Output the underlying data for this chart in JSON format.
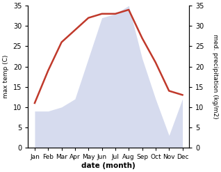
{
  "months": [
    "Jan",
    "Feb",
    "Mar",
    "Apr",
    "May",
    "Jun",
    "Jul",
    "Aug",
    "Sep",
    "Oct",
    "Nov",
    "Dec"
  ],
  "temperature": [
    11,
    19,
    26,
    29,
    32,
    33,
    33,
    34,
    27,
    21,
    14,
    13
  ],
  "precipitation": [
    9,
    9,
    10,
    12,
    22,
    32,
    33,
    35,
    22,
    12,
    3,
    12
  ],
  "temp_color": "#c0392b",
  "precip_color": "#c5cce8",
  "title": "",
  "xlabel": "date (month)",
  "ylabel_left": "max temp (C)",
  "ylabel_right": "med. precipitation (kg/m2)",
  "ylim_left": [
    0,
    35
  ],
  "ylim_right": [
    0,
    35
  ],
  "yticks": [
    0,
    5,
    10,
    15,
    20,
    25,
    30,
    35
  ],
  "background_color": "#ffffff",
  "line_width": 1.8,
  "figsize": [
    3.18,
    2.47
  ],
  "dpi": 100
}
